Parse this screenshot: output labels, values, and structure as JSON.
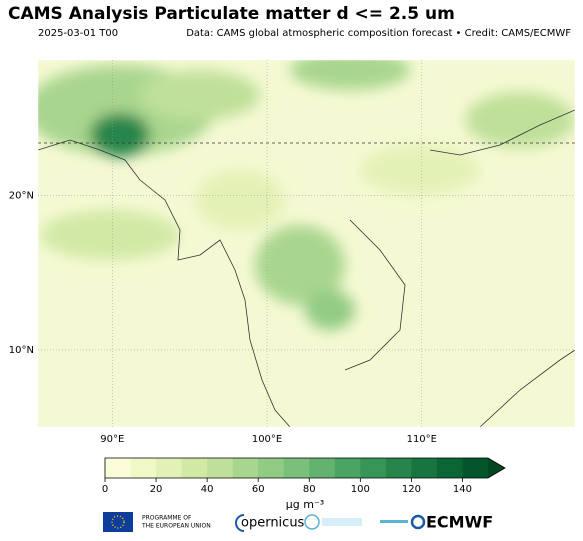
{
  "header": {
    "title": "CAMS Analysis Particulate matter d <= 2.5 um",
    "date": "2025-03-01 T00",
    "credit": "Data: CAMS global atmospheric composition forecast • Credit: CAMS/ECMWF"
  },
  "map": {
    "lon_range": [
      85.2,
      119.9
    ],
    "lat_range": [
      5,
      28.8
    ],
    "lon_ticks": [
      {
        "value": 90,
        "label": "90°E"
      },
      {
        "value": 100,
        "label": "100°E"
      },
      {
        "value": 110,
        "label": "110°E"
      }
    ],
    "lat_ticks": [
      {
        "value": 10,
        "label": "10°N"
      },
      {
        "value": 20,
        "label": "20°N"
      }
    ]
  },
  "colorbar": {
    "range": [
      0,
      150
    ],
    "ticks": [
      0,
      20,
      40,
      60,
      80,
      100,
      120,
      140
    ],
    "colors": [
      "#fbfdd9",
      "#f1f8c8",
      "#e3f1b6",
      "#d2e9a6",
      "#bfe09a",
      "#a9d68e",
      "#92cb84",
      "#7abf7a",
      "#63b26f",
      "#4ca464",
      "#389558",
      "#27854c",
      "#187540",
      "#0c6535",
      "#04552b"
    ],
    "extend_color": "#00461f",
    "label": "µg m⁻³"
  },
  "footer": {
    "eu_line1": "PROGRAMME OF",
    "eu_line2": "THE EUROPEAN UNION",
    "copernicus": "opernicus",
    "ecmwf": "ECMWF"
  }
}
